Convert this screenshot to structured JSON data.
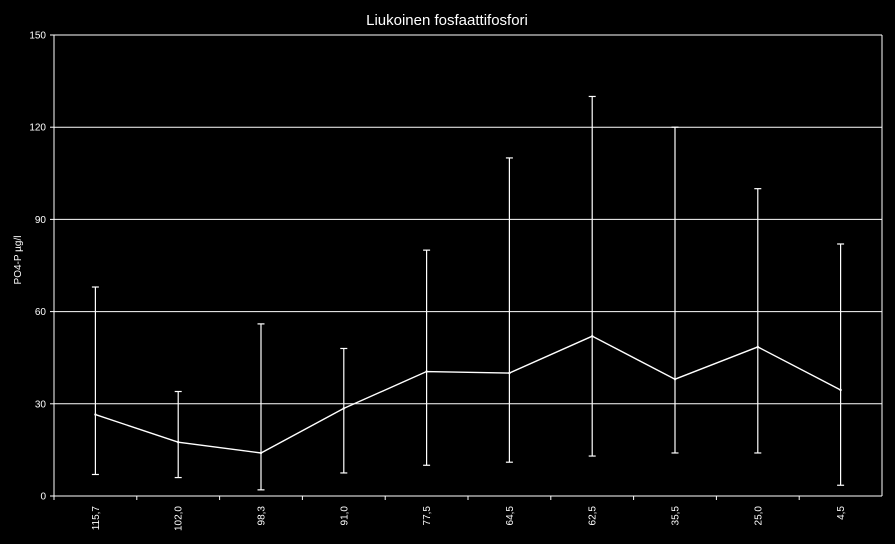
{
  "chart_data": {
    "type": "line",
    "title": "Liukoinen fosfaattifosfori",
    "xlabel": "",
    "ylabel": "PO4-P µg/l",
    "categories": [
      "115,7",
      "102,0",
      "98,3",
      "91,0",
      "77,5",
      "64,5",
      "62,5",
      "35,5",
      "25,0",
      "4,5"
    ],
    "series": [
      {
        "values": [
          26.5,
          17.5,
          14,
          28.5,
          40.5,
          40,
          52,
          38,
          48.5,
          34.5
        ],
        "error_low": [
          7,
          6,
          2,
          7.5,
          10,
          11,
          13,
          14,
          14,
          3.5
        ],
        "error_high": [
          68,
          34,
          56,
          48,
          80,
          110,
          130,
          120,
          100,
          82
        ]
      }
    ],
    "ylim": [
      0,
      150
    ],
    "yticks": [
      0,
      30,
      60,
      90,
      120,
      150
    ],
    "grid": true,
    "legend": "none",
    "colors": {
      "background": "#000000",
      "line": "#ffffff",
      "grid": "#ffffff",
      "text": "#ffffff"
    }
  }
}
